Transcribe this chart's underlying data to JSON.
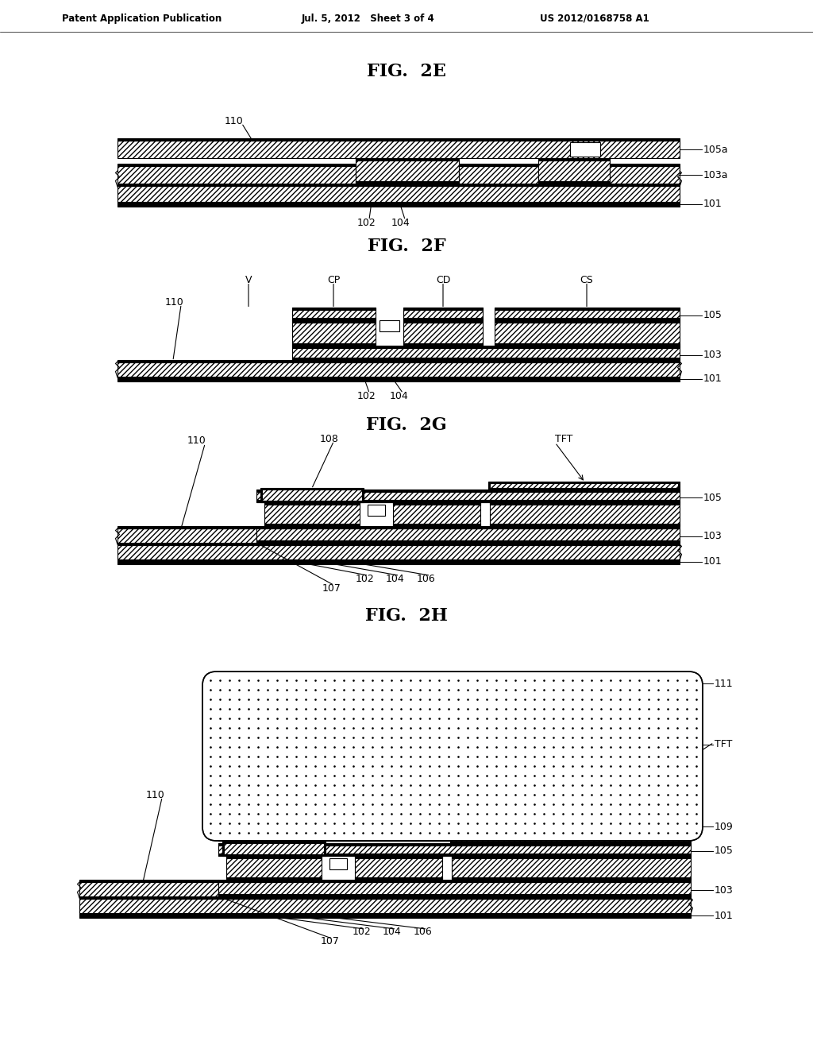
{
  "bg_color": "#ffffff",
  "header_left": "Patent Application Publication",
  "header_mid": "Jul. 5, 2012   Sheet 3 of 4",
  "header_right": "US 2012/0168758 A1"
}
